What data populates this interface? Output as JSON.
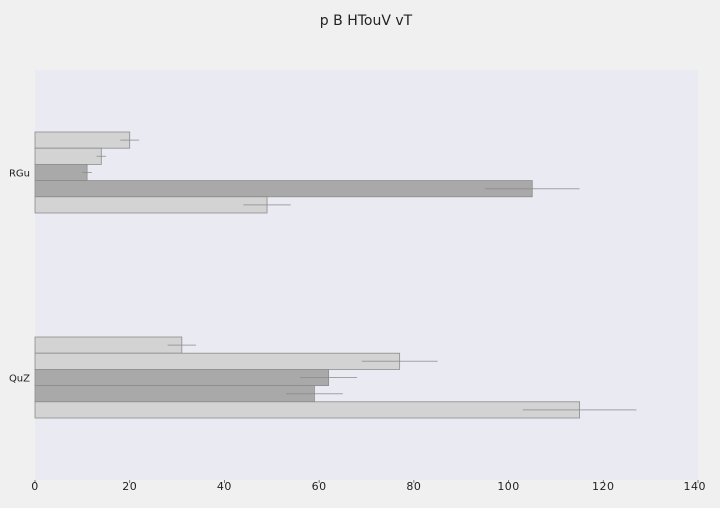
{
  "chart_data": {
    "type": "bar",
    "orientation": "horizontal",
    "title": "p B HTouV  vT",
    "xlabel": "",
    "ylabel": "",
    "xlim": [
      0,
      140
    ],
    "x_ticks": [
      "0",
      "20",
      "40",
      "60",
      "80",
      "100",
      "120",
      "140"
    ],
    "categories": [
      "RGu",
      "QuZ"
    ],
    "grid": false,
    "legend": "none",
    "plot_background": "#eaeaf2",
    "page_background": "#f0f0f0",
    "series": [
      {
        "values": [
          20,
          31
        ],
        "errors": [
          2,
          3
        ],
        "color": "#d3d3d3"
      },
      {
        "values": [
          14,
          77
        ],
        "errors": [
          1,
          8
        ],
        "color": "#d3d3d3"
      },
      {
        "values": [
          11,
          62
        ],
        "errors": [
          1,
          6
        ],
        "color": "#a9a9a9"
      },
      {
        "values": [
          105,
          59
        ],
        "errors": [
          10,
          6
        ],
        "color": "#a9a9a9"
      },
      {
        "values": [
          49,
          115
        ],
        "errors": [
          5,
          12
        ],
        "color": "#d3d3d3"
      }
    ]
  }
}
